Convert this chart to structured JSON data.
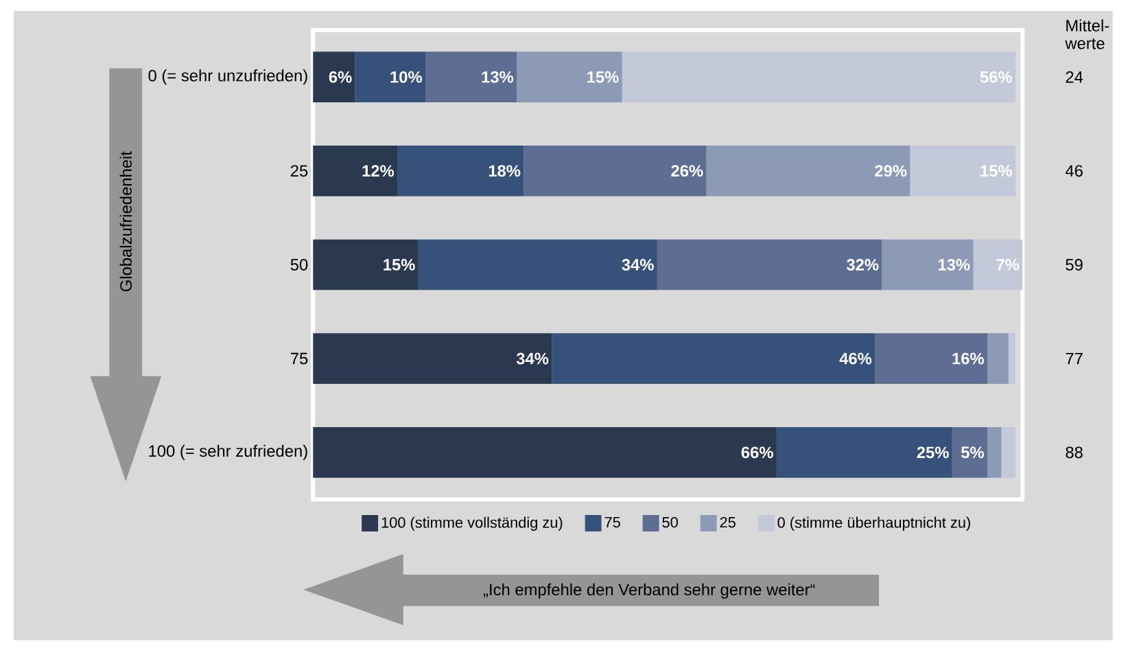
{
  "chart_data": {
    "type": "bar",
    "orientation": "horizontal",
    "stacked": true,
    "categories": [
      "0 (= sehr unzufrieden)",
      "25",
      "50",
      "75",
      "100 (= sehr zufrieden)"
    ],
    "series": [
      {
        "name": "100 (stimme vollständig zu)",
        "color": "#2a3850",
        "values": [
          6,
          12,
          15,
          34,
          66
        ],
        "value_labels": [
          "6%",
          "12%",
          "15%",
          "34%",
          "66%"
        ]
      },
      {
        "name": "75",
        "color": "#36527a",
        "values": [
          10,
          18,
          34,
          46,
          25
        ],
        "value_labels": [
          "10%",
          "18%",
          "34%",
          "46%",
          "25%"
        ]
      },
      {
        "name": "50",
        "color": "#5d6e92",
        "values": [
          13,
          26,
          32,
          16,
          5
        ],
        "value_labels": [
          "13%",
          "26%",
          "32%",
          "16%",
          "5%"
        ]
      },
      {
        "name": "25",
        "color": "#8c9ab5",
        "values": [
          15,
          29,
          13,
          3,
          2
        ],
        "value_labels": [
          "15%",
          "29%",
          "13%",
          null,
          null
        ]
      },
      {
        "name": "0 (stimme überhauptnicht zu)",
        "color": "#c4c9da",
        "values": [
          56,
          15,
          7,
          1,
          2
        ],
        "value_labels": [
          "56%",
          "15%",
          "7%",
          null,
          null
        ]
      }
    ],
    "tick_labels": "y",
    "legend": "bottom",
    "annotations": [
      "Globalzufriedenheit",
      "„Ich empfehle den Verband sehr gerne weiter“",
      "Mittel-werte",
      "24",
      "46",
      "59",
      "77",
      "88"
    ]
  }
}
